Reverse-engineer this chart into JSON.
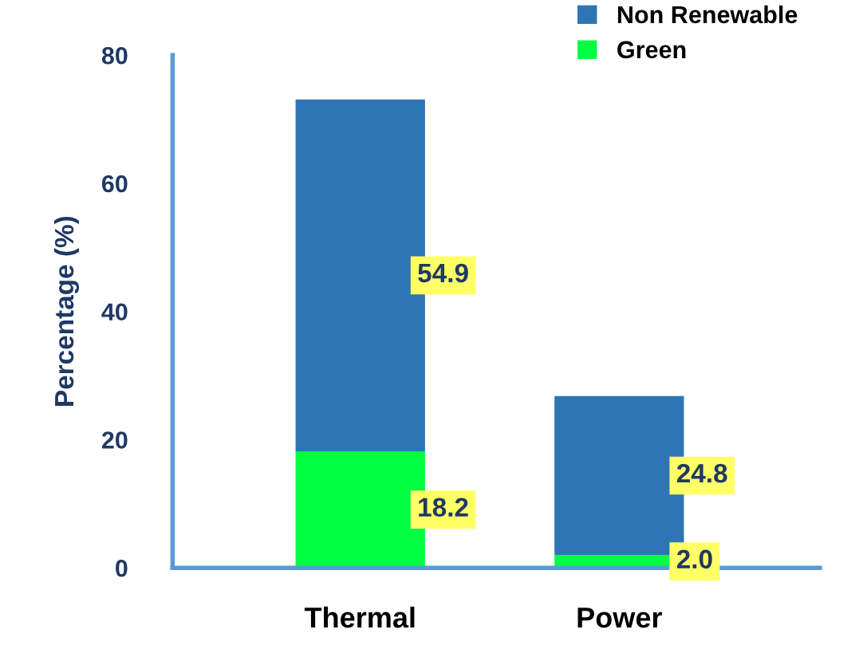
{
  "chart_data": {
    "type": "bar",
    "stacked": true,
    "ylabel": "Percentage (%)",
    "categories": [
      "Thermal",
      "Power"
    ],
    "series": [
      {
        "name": "Green",
        "color": "#00ff40",
        "values": [
          18.2,
          2.0
        ],
        "value_labels": [
          "18.2",
          "2.0"
        ]
      },
      {
        "name": "Non Renewable",
        "color": "#2e75b6",
        "values": [
          54.9,
          24.8
        ],
        "value_labels": [
          "54.9",
          "24.8"
        ]
      }
    ],
    "ylim": [
      0,
      80
    ],
    "yticks": [
      0,
      20,
      40,
      60,
      80
    ],
    "grid": false,
    "legend": "top right"
  }
}
